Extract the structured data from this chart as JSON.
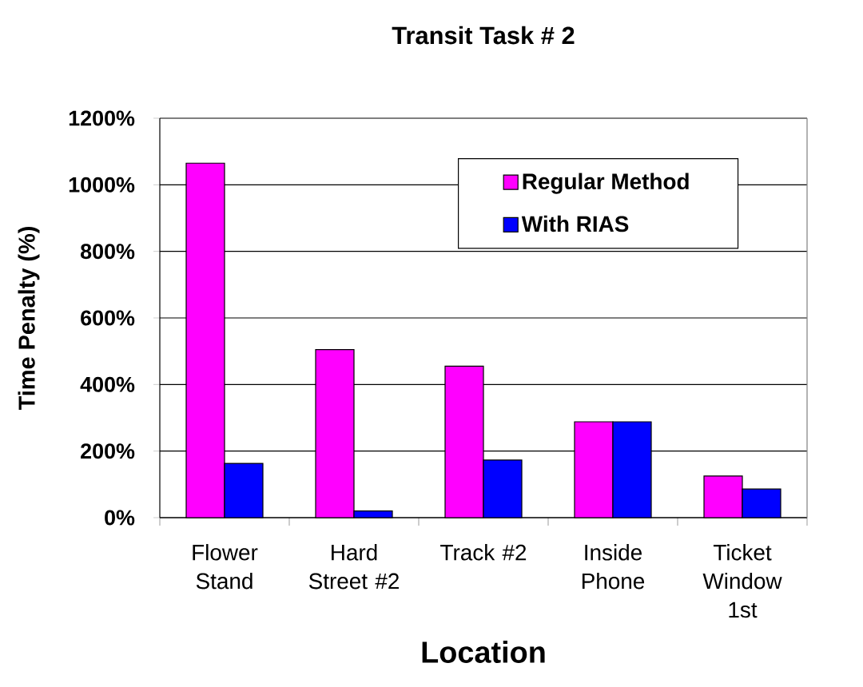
{
  "chart_data": {
    "type": "bar",
    "title": "Transit Task # 2",
    "xlabel": "Location",
    "ylabel": "Time Penalty (%)",
    "categories": [
      "Flower Stand",
      "Hard Street #2",
      "Track #2",
      "Inside Phone",
      "Ticket Window 1st"
    ],
    "series": [
      {
        "name": "Regular Method",
        "color": "#ff00ff",
        "values": [
          1065,
          505,
          455,
          288,
          125
        ]
      },
      {
        "name": "With RIAS",
        "color": "#0000ff",
        "values": [
          163,
          20,
          173,
          288,
          86
        ]
      }
    ],
    "ylim": [
      0,
      1200
    ],
    "yticks": [
      {
        "value": 0,
        "label": "0%"
      },
      {
        "value": 200,
        "label": "200%"
      },
      {
        "value": 400,
        "label": "400%"
      },
      {
        "value": 600,
        "label": "600%"
      },
      {
        "value": 800,
        "label": "800%"
      },
      {
        "value": 1000,
        "label": "1000%"
      },
      {
        "value": 1200,
        "label": "1200%"
      }
    ],
    "grid": "y",
    "legend": "top right"
  }
}
